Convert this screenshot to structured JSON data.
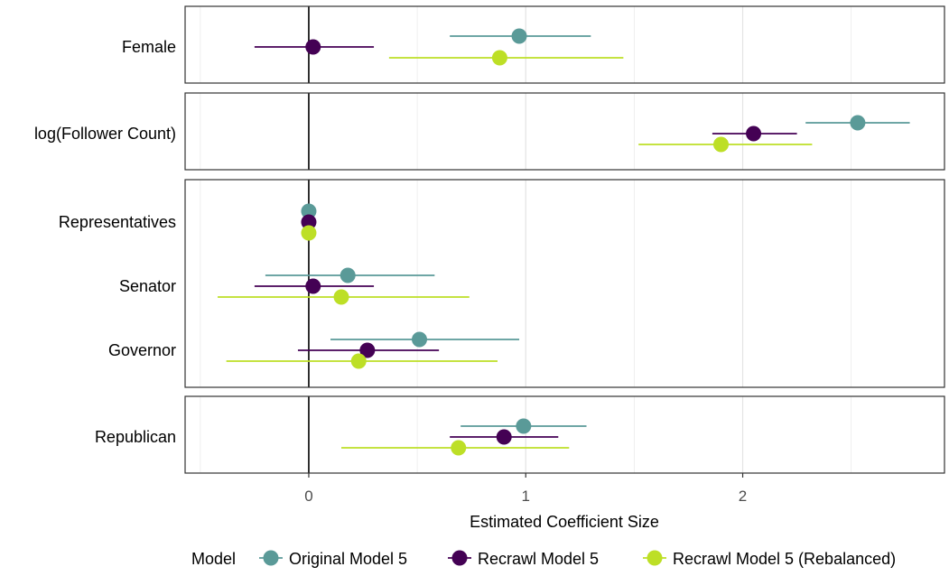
{
  "chart_data": {
    "type": "scatter",
    "xlabel": "Estimated Coefficient Size",
    "xlim": [
      -0.57,
      2.93
    ],
    "xticks": [
      0,
      1,
      2
    ],
    "xtick_labels": [
      "0",
      "1",
      "2"
    ],
    "grid": true,
    "zero_line": 0,
    "legend": {
      "title": "Model",
      "placement": "bottom"
    },
    "panels": [
      {
        "terms": [
          "Female"
        ]
      },
      {
        "terms": [
          "log(Follower Count)"
        ]
      },
      {
        "terms": [
          "Representatives",
          "Senator",
          "Governor"
        ]
      },
      {
        "terms": [
          "Republican"
        ]
      }
    ],
    "series": [
      {
        "name": "Original Model 5",
        "color": "#5a9a98",
        "points": [
          {
            "term": "Female",
            "estimate": 0.97,
            "lower": 0.65,
            "upper": 1.3
          },
          {
            "term": "log(Follower Count)",
            "estimate": 2.53,
            "lower": 2.29,
            "upper": 2.77
          },
          {
            "term": "Representatives",
            "estimate": 0.0,
            "lower": 0.0,
            "upper": 0.0
          },
          {
            "term": "Senator",
            "estimate": 0.18,
            "lower": -0.2,
            "upper": 0.58
          },
          {
            "term": "Governor",
            "estimate": 0.51,
            "lower": 0.1,
            "upper": 0.97
          },
          {
            "term": "Republican",
            "estimate": 0.99,
            "lower": 0.7,
            "upper": 1.28
          }
        ]
      },
      {
        "name": "Recrawl Model 5",
        "color": "#440154",
        "points": [
          {
            "term": "Female",
            "estimate": 0.02,
            "lower": -0.25,
            "upper": 0.3
          },
          {
            "term": "log(Follower Count)",
            "estimate": 2.05,
            "lower": 1.86,
            "upper": 2.25
          },
          {
            "term": "Representatives",
            "estimate": 0.0,
            "lower": 0.0,
            "upper": 0.0
          },
          {
            "term": "Senator",
            "estimate": 0.02,
            "lower": -0.25,
            "upper": 0.3
          },
          {
            "term": "Governor",
            "estimate": 0.27,
            "lower": -0.05,
            "upper": 0.6
          },
          {
            "term": "Republican",
            "estimate": 0.9,
            "lower": 0.65,
            "upper": 1.15
          }
        ]
      },
      {
        "name": "Recrawl Model 5 (Rebalanced)",
        "color": "#bddf26",
        "points": [
          {
            "term": "Female",
            "estimate": 0.88,
            "lower": 0.37,
            "upper": 1.45
          },
          {
            "term": "log(Follower Count)",
            "estimate": 1.9,
            "lower": 1.52,
            "upper": 2.32
          },
          {
            "term": "Representatives",
            "estimate": 0.0,
            "lower": 0.0,
            "upper": 0.0
          },
          {
            "term": "Senator",
            "estimate": 0.15,
            "lower": -0.42,
            "upper": 0.74
          },
          {
            "term": "Governor",
            "estimate": 0.23,
            "lower": -0.38,
            "upper": 0.87
          },
          {
            "term": "Republican",
            "estimate": 0.69,
            "lower": 0.15,
            "upper": 1.2
          }
        ]
      }
    ]
  }
}
